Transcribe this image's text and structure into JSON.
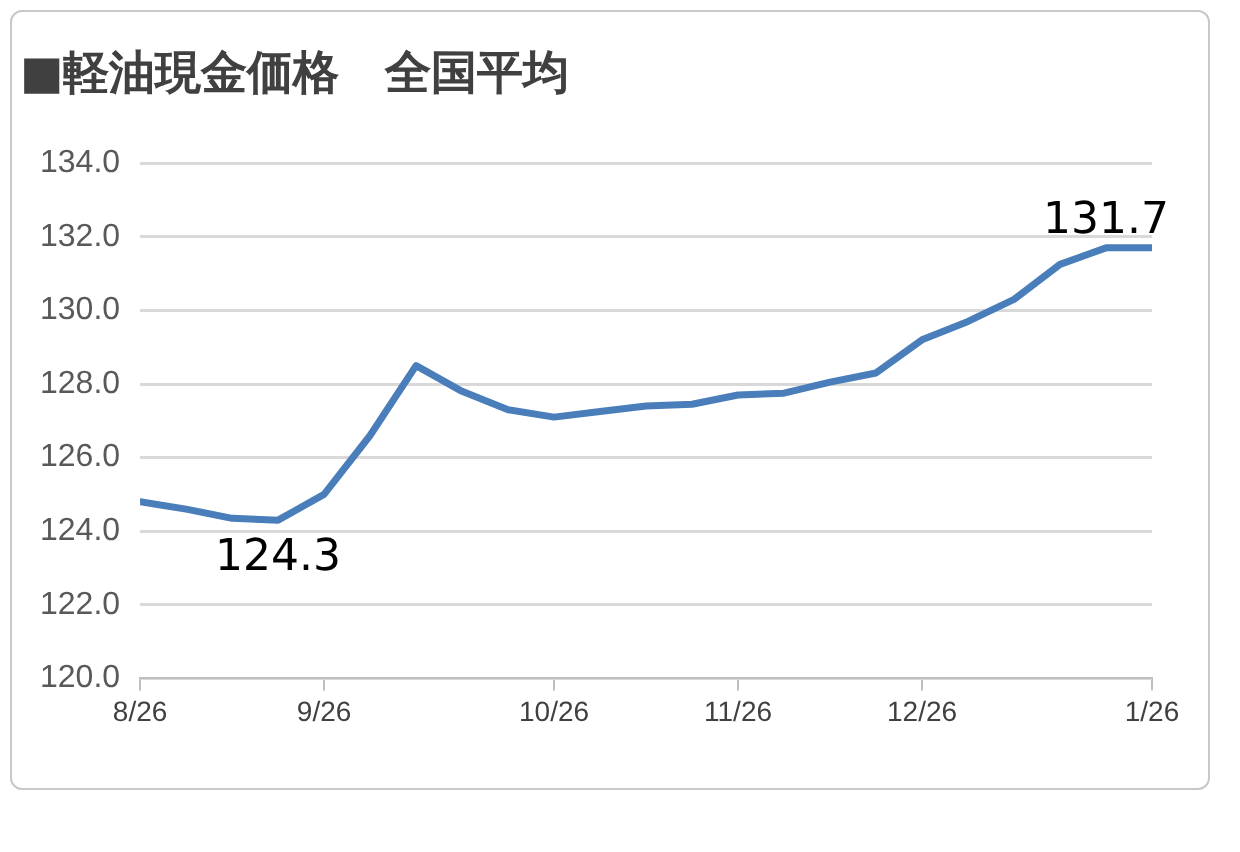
{
  "chart_data": {
    "type": "line",
    "title": "■軽油現金価格　全国平均",
    "categories": [
      "8/26",
      null,
      null,
      null,
      "9/26",
      null,
      null,
      null,
      null,
      "10/26",
      null,
      null,
      null,
      "11/26",
      null,
      null,
      null,
      "12/26",
      null,
      null,
      null,
      null,
      "1/26"
    ],
    "series": [
      {
        "color": "#4a7ebb",
        "values": [
          124.8,
          124.6,
          124.35,
          124.3,
          125.0,
          126.6,
          128.5,
          127.8,
          127.3,
          127.1,
          127.25,
          127.4,
          127.45,
          127.7,
          127.75,
          128.05,
          128.3,
          129.2,
          129.7,
          130.3,
          131.25,
          131.7,
          131.7
        ]
      }
    ],
    "ylim": [
      120,
      134
    ],
    "yticks": [
      {
        "value": 120,
        "label": "120.0"
      },
      {
        "value": 122,
        "label": "122.0"
      },
      {
        "value": 124,
        "label": "124.0"
      },
      {
        "value": 126,
        "label": "126.0"
      },
      {
        "value": 128,
        "label": "128.0"
      },
      {
        "value": 130,
        "label": "130.0"
      },
      {
        "value": 132,
        "label": "132.0"
      },
      {
        "value": 134,
        "label": "134.0"
      }
    ],
    "grid": "y",
    "legend": false,
    "marker": "none",
    "line_style": "solid",
    "annotations": [
      {
        "text": "124.3",
        "y": 124.3
      },
      {
        "text": "131.7",
        "y": 131.7
      }
    ]
  }
}
